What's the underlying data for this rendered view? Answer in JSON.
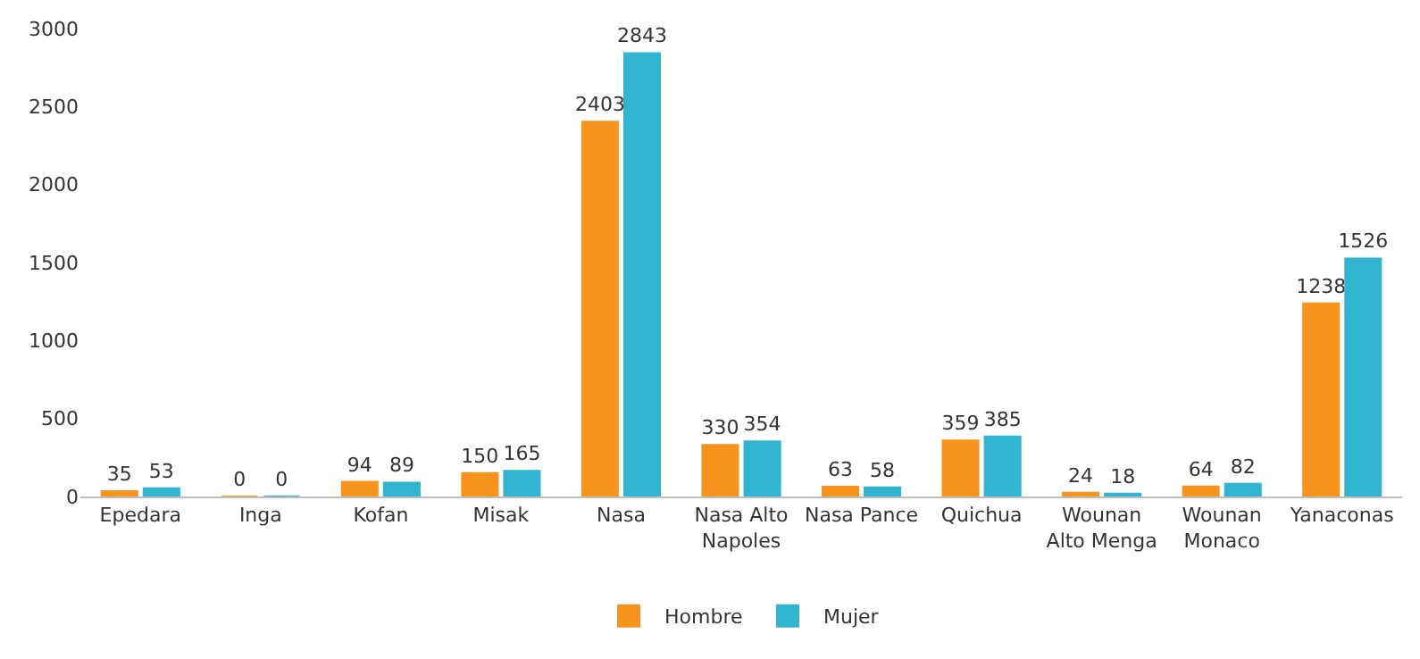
{
  "chart_data": {
    "type": "bar",
    "categories": [
      "Epedara",
      "Inga",
      "Kofan",
      "Misak",
      "Nasa",
      "Nasa Alto Napoles",
      "Nasa Pance",
      "Quichua",
      "Wounan Alto Menga",
      "Wounan Monaco",
      "Yanaconas"
    ],
    "series": [
      {
        "name": "Hombre",
        "color": "#f7941d",
        "values": [
          35,
          0,
          94,
          150,
          2403,
          330,
          63,
          359,
          24,
          64,
          1238
        ]
      },
      {
        "name": "Mujer",
        "color": "#31b4cf",
        "values": [
          53,
          0,
          89,
          165,
          2843,
          354,
          58,
          385,
          18,
          82,
          1526
        ]
      }
    ],
    "ylim": [
      0,
      3000
    ],
    "yticks": [
      0,
      500,
      1000,
      1500,
      2000,
      2500,
      3000
    ],
    "legend": "bottom",
    "data_labels": true
  }
}
